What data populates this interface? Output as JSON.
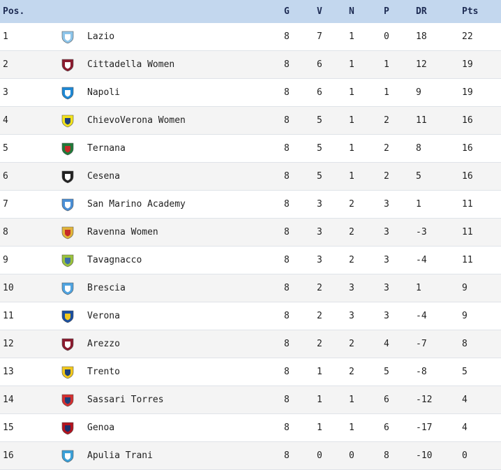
{
  "header": {
    "pos": "Pos.",
    "g": "G",
    "v": "V",
    "n": "N",
    "p": "P",
    "dr": "DR",
    "pts": "Pts"
  },
  "rows": [
    {
      "pos": "1",
      "name": "Lazio",
      "g": "8",
      "v": "7",
      "n": "1",
      "p": "0",
      "dr": "18",
      "pts": "22",
      "logo": "lazio-crest-icon",
      "color": "#8ec5ea",
      "color2": "#ffffff"
    },
    {
      "pos": "2",
      "name": "Cittadella Women",
      "g": "8",
      "v": "6",
      "n": "1",
      "p": "1",
      "dr": "12",
      "pts": "19",
      "logo": "cittadella-crest-icon",
      "color": "#8b1a2e",
      "color2": "#ffffff"
    },
    {
      "pos": "3",
      "name": "Napoli",
      "g": "8",
      "v": "6",
      "n": "1",
      "p": "1",
      "dr": "9",
      "pts": "19",
      "logo": "napoli-crest-icon",
      "color": "#1e88d4",
      "color2": "#ffffff"
    },
    {
      "pos": "4",
      "name": "ChievoVerona Women",
      "g": "8",
      "v": "5",
      "n": "1",
      "p": "2",
      "dr": "11",
      "pts": "16",
      "logo": "chievo-crest-icon",
      "color": "#f2e21c",
      "color2": "#1c3f7a"
    },
    {
      "pos": "5",
      "name": "Ternana",
      "g": "8",
      "v": "5",
      "n": "1",
      "p": "2",
      "dr": "8",
      "pts": "16",
      "logo": "ternana-crest-icon",
      "color": "#1f7a3a",
      "color2": "#c62828"
    },
    {
      "pos": "6",
      "name": "Cesena",
      "g": "8",
      "v": "5",
      "n": "1",
      "p": "2",
      "dr": "5",
      "pts": "16",
      "logo": "cesena-crest-icon",
      "color": "#222222",
      "color2": "#ffffff"
    },
    {
      "pos": "7",
      "name": "San Marino Academy",
      "g": "8",
      "v": "3",
      "n": "2",
      "p": "3",
      "dr": "1",
      "pts": "11",
      "logo": "san-marino-crest-icon",
      "color": "#4a8fd6",
      "color2": "#ffffff"
    },
    {
      "pos": "8",
      "name": "Ravenna Women",
      "g": "8",
      "v": "3",
      "n": "2",
      "p": "3",
      "dr": "-3",
      "pts": "11",
      "logo": "ravenna-crest-icon",
      "color": "#e0b43a",
      "color2": "#c62828"
    },
    {
      "pos": "9",
      "name": "Tavagnacco",
      "g": "8",
      "v": "3",
      "n": "2",
      "p": "3",
      "dr": "-4",
      "pts": "11",
      "logo": "tavagnacco-crest-icon",
      "color": "#9bc23c",
      "color2": "#3a6ea8"
    },
    {
      "pos": "10",
      "name": "Brescia",
      "g": "8",
      "v": "2",
      "n": "3",
      "p": "3",
      "dr": "1",
      "pts": "9",
      "logo": "brescia-crest-icon",
      "color": "#4fa3e0",
      "color2": "#ffffff"
    },
    {
      "pos": "11",
      "name": "Verona",
      "g": "8",
      "v": "2",
      "n": "3",
      "p": "3",
      "dr": "-4",
      "pts": "9",
      "logo": "verona-crest-icon",
      "color": "#1a4fa0",
      "color2": "#f2c81c"
    },
    {
      "pos": "12",
      "name": "Arezzo",
      "g": "8",
      "v": "2",
      "n": "2",
      "p": "4",
      "dr": "-7",
      "pts": "8",
      "logo": "arezzo-crest-icon",
      "color": "#8b1a2e",
      "color2": "#ffffff"
    },
    {
      "pos": "13",
      "name": "Trento",
      "g": "8",
      "v": "1",
      "n": "2",
      "p": "5",
      "dr": "-8",
      "pts": "5",
      "logo": "trento-crest-icon",
      "color": "#f2c81c",
      "color2": "#1c3f7a"
    },
    {
      "pos": "14",
      "name": "Sassari Torres",
      "g": "8",
      "v": "1",
      "n": "1",
      "p": "6",
      "dr": "-12",
      "pts": "4",
      "logo": "sassari-torres-crest-icon",
      "color": "#d32f2f",
      "color2": "#1c3f7a"
    },
    {
      "pos": "15",
      "name": "Genoa",
      "g": "8",
      "v": "1",
      "n": "1",
      "p": "6",
      "dr": "-17",
      "pts": "4",
      "logo": "genoa-crest-icon",
      "color": "#b3131e",
      "color2": "#1c2f6a"
    },
    {
      "pos": "16",
      "name": "Apulia Trani",
      "g": "8",
      "v": "0",
      "n": "0",
      "p": "8",
      "dr": "-10",
      "pts": "0",
      "logo": "apulia-trani-crest-icon",
      "color": "#3aa0d8",
      "color2": "#ffffff"
    }
  ]
}
